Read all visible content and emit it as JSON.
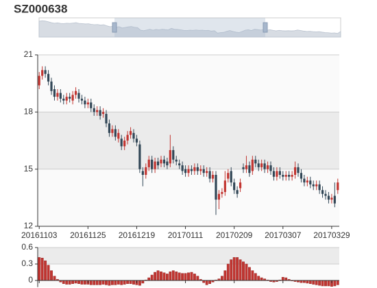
{
  "chart_data": [
    {
      "type": "candlestick",
      "title": "SZ000638",
      "categories": [
        "20161103",
        null,
        null,
        null,
        null,
        null,
        null,
        null,
        null,
        null,
        null,
        null,
        null,
        null,
        null,
        null,
        "20161125",
        null,
        null,
        null,
        null,
        null,
        null,
        null,
        null,
        null,
        null,
        null,
        null,
        null,
        null,
        null,
        "20161219",
        null,
        null,
        null,
        null,
        null,
        null,
        null,
        null,
        null,
        null,
        null,
        null,
        null,
        null,
        null,
        "20170111",
        null,
        null,
        null,
        null,
        null,
        null,
        null,
        null,
        null,
        null,
        null,
        null,
        null,
        null,
        null,
        "20170209",
        null,
        null,
        null,
        null,
        null,
        null,
        null,
        null,
        null,
        null,
        null,
        null,
        null,
        null,
        null,
        "20170307",
        null,
        null,
        null,
        null,
        null,
        null,
        null,
        null,
        null,
        null,
        null,
        null,
        null,
        null,
        null,
        "20170329",
        null,
        null
      ],
      "open": [
        19.4,
        19.9,
        20.2,
        20.0,
        19.6,
        19.2,
        18.8,
        19.0,
        18.7,
        18.6,
        18.8,
        18.6,
        18.9,
        19.0,
        18.7,
        18.6,
        18.4,
        18.5,
        18.2,
        18.0,
        18.1,
        17.9,
        17.9,
        17.4,
        16.9,
        17.1,
        16.6,
        16.6,
        16.2,
        16.5,
        16.8,
        16.9,
        16.6,
        16.3,
        14.9,
        14.7,
        15.1,
        15.5,
        15.0,
        15.4,
        15.3,
        15.5,
        15.4,
        15.3,
        16.0,
        15.5,
        15.3,
        15.2,
        15.0,
        14.8,
        15.0,
        14.9,
        15.1,
        14.9,
        15.0,
        14.8,
        14.9,
        14.5,
        14.7,
        13.4,
        13.7,
        13.8,
        14.5,
        14.9,
        14.3,
        13.9,
        14.0,
        15.1,
        15.0,
        15.2,
        14.9,
        15.5,
        15.3,
        15.1,
        15.3,
        15.0,
        15.2,
        14.9,
        14.6,
        14.9,
        14.7,
        14.6,
        14.7,
        14.6,
        14.7,
        15.1,
        14.8,
        14.5,
        14.3,
        14.4,
        14.2,
        14.1,
        14.2,
        13.9,
        13.7,
        13.6,
        13.4,
        13.6,
        13.9
      ],
      "close": [
        19.9,
        20.2,
        20.0,
        19.6,
        19.1,
        18.8,
        19.0,
        18.7,
        18.6,
        18.8,
        18.7,
        18.9,
        19.1,
        18.7,
        18.6,
        18.4,
        18.5,
        18.2,
        18.0,
        18.1,
        17.8,
        18.0,
        17.4,
        16.9,
        17.1,
        16.7,
        16.9,
        16.2,
        16.5,
        16.8,
        17.0,
        16.6,
        16.4,
        15.0,
        14.7,
        15.1,
        15.5,
        15.0,
        15.4,
        15.2,
        15.5,
        15.3,
        15.2,
        16.0,
        15.5,
        15.4,
        15.2,
        14.9,
        14.8,
        15.0,
        14.9,
        15.1,
        14.9,
        15.0,
        14.8,
        14.9,
        14.5,
        14.7,
        13.4,
        13.7,
        13.8,
        14.4,
        14.8,
        14.3,
        13.9,
        13.7,
        14.3,
        15.0,
        15.2,
        14.8,
        15.5,
        15.3,
        15.1,
        15.3,
        15.0,
        15.2,
        14.9,
        14.6,
        14.9,
        14.7,
        14.6,
        14.7,
        14.6,
        14.7,
        15.1,
        14.8,
        14.5,
        14.3,
        14.4,
        14.2,
        14.1,
        14.2,
        13.9,
        13.7,
        13.6,
        13.4,
        13.5,
        13.2,
        14.3
      ],
      "low": [
        19.2,
        19.7,
        19.8,
        19.4,
        18.9,
        18.6,
        18.6,
        18.5,
        18.4,
        18.4,
        18.5,
        18.4,
        18.7,
        18.5,
        18.4,
        18.2,
        18.2,
        18.0,
        17.8,
        17.8,
        17.6,
        17.7,
        17.2,
        16.7,
        16.7,
        16.5,
        16.4,
        16.0,
        16.0,
        16.3,
        16.6,
        16.4,
        16.2,
        14.8,
        14.1,
        14.5,
        14.9,
        14.8,
        14.8,
        15.0,
        15.1,
        15.1,
        15.0,
        15.1,
        15.3,
        15.2,
        15.0,
        14.7,
        14.6,
        14.6,
        14.7,
        14.7,
        14.7,
        14.7,
        14.6,
        14.6,
        14.3,
        14.3,
        12.6,
        12.9,
        13.5,
        13.6,
        14.3,
        14.1,
        13.7,
        13.5,
        13.8,
        14.8,
        14.8,
        14.6,
        14.7,
        15.1,
        14.9,
        14.9,
        14.8,
        14.8,
        14.7,
        14.4,
        14.4,
        14.5,
        14.4,
        14.4,
        14.4,
        14.4,
        14.5,
        14.6,
        14.3,
        14.1,
        14.1,
        14.0,
        13.9,
        13.9,
        13.7,
        13.5,
        13.4,
        13.2,
        13.2,
        13.0,
        13.7
      ],
      "high": [
        20.1,
        20.4,
        20.4,
        20.2,
        19.8,
        19.4,
        19.2,
        19.2,
        18.9,
        19.0,
        19.0,
        19.1,
        19.3,
        19.2,
        18.9,
        18.8,
        18.7,
        18.7,
        18.4,
        18.3,
        18.3,
        18.2,
        18.1,
        17.6,
        17.3,
        17.3,
        17.1,
        16.8,
        16.7,
        17.0,
        17.2,
        17.1,
        16.8,
        16.5,
        15.1,
        15.3,
        15.7,
        15.7,
        15.6,
        15.6,
        15.7,
        15.7,
        15.6,
        16.8,
        16.2,
        15.7,
        15.5,
        15.4,
        15.2,
        15.2,
        15.2,
        15.3,
        15.3,
        15.2,
        15.2,
        15.1,
        15.1,
        14.9,
        14.9,
        13.9,
        14.0,
        14.9,
        15.0,
        15.1,
        14.5,
        14.1,
        14.5,
        15.3,
        15.7,
        15.4,
        15.7,
        15.7,
        15.5,
        15.5,
        15.5,
        15.4,
        15.4,
        15.1,
        15.1,
        15.1,
        14.9,
        14.9,
        14.9,
        14.9,
        15.4,
        15.3,
        15.0,
        14.7,
        14.6,
        14.6,
        14.4,
        14.4,
        14.4,
        14.1,
        13.9,
        13.8,
        13.7,
        14.3,
        14.5
      ],
      "up_color": "#c23531",
      "down_color": "#314656",
      "ylim": [
        12,
        21
      ],
      "yticks": [
        12,
        15,
        18,
        21
      ],
      "split_area_colors": [
        "#fafafa",
        "#ebebeb"
      ]
    },
    {
      "type": "bar",
      "values": [
        0.42,
        0.41,
        0.36,
        0.28,
        0.18,
        0.08,
        0.02,
        -0.03,
        -0.06,
        -0.07,
        -0.07,
        -0.06,
        -0.05,
        -0.06,
        -0.07,
        -0.07,
        -0.07,
        -0.08,
        -0.08,
        -0.08,
        -0.08,
        -0.07,
        -0.08,
        -0.09,
        -0.08,
        -0.08,
        -0.07,
        -0.08,
        -0.07,
        -0.06,
        -0.06,
        -0.07,
        -0.08,
        -0.09,
        -0.05,
        0.01,
        0.05,
        0.1,
        0.15,
        0.18,
        0.16,
        0.14,
        0.12,
        0.16,
        0.18,
        0.16,
        0.14,
        0.13,
        0.13,
        0.14,
        0.15,
        0.12,
        0.08,
        0.02,
        -0.04,
        -0.08,
        -0.06,
        -0.03,
        0.01,
        0.03,
        0.08,
        0.18,
        0.3,
        0.38,
        0.42,
        0.42,
        0.38,
        0.34,
        0.3,
        0.24,
        0.18,
        0.13,
        0.08,
        0.05,
        0.03,
        0.01,
        -0.02,
        -0.03,
        -0.02,
        0.01,
        0.06,
        0.05,
        0.02,
        -0.01,
        -0.02,
        -0.03,
        -0.04,
        -0.04,
        -0.05,
        -0.06,
        -0.07,
        -0.08,
        -0.09,
        -0.1,
        -0.1,
        -0.1,
        -0.11,
        -0.1,
        -0.08
      ],
      "color": "#c23531",
      "ylim": [
        -0.12,
        0.6
      ],
      "yticks": [
        0,
        0.3,
        0.6
      ],
      "split_area_colors": [
        "#fafafa",
        "#ebebeb"
      ]
    }
  ]
}
